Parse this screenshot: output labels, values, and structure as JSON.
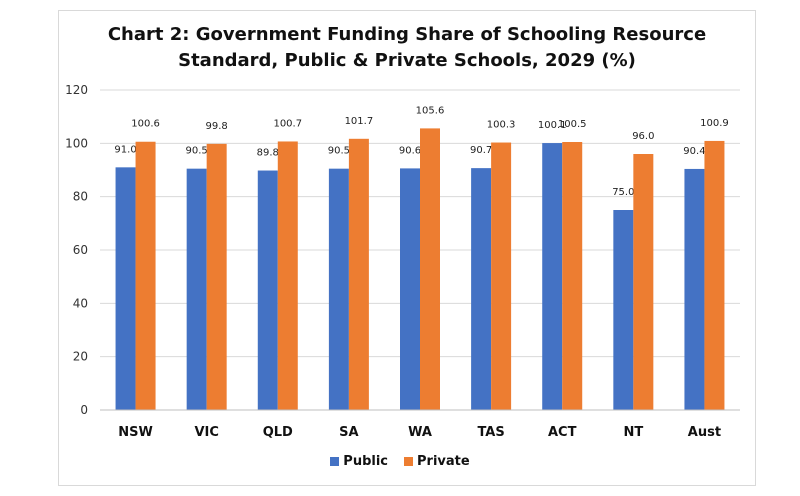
{
  "chart_data": {
    "type": "bar",
    "title_line1": "Chart 2: Government Funding Share of Schooling Resource",
    "title_line2": "Standard, Public & Private Schools, 2029 (%)",
    "categories": [
      "NSW",
      "VIC",
      "QLD",
      "SA",
      "WA",
      "TAS",
      "ACT",
      "NT",
      "Aust"
    ],
    "series": [
      {
        "name": "Public",
        "color": "#4472c4",
        "values": [
          91.0,
          90.5,
          89.8,
          90.5,
          90.6,
          90.7,
          100.1,
          75.0,
          90.4
        ]
      },
      {
        "name": "Private",
        "color": "#ed7d31",
        "values": [
          100.6,
          99.8,
          100.7,
          101.7,
          105.6,
          100.3,
          100.5,
          96.0,
          100.9
        ]
      }
    ],
    "ylim": [
      0,
      120
    ],
    "yticks": [
      0,
      20,
      40,
      60,
      80,
      100,
      120
    ],
    "grid": true,
    "legend_position": "bottom"
  }
}
